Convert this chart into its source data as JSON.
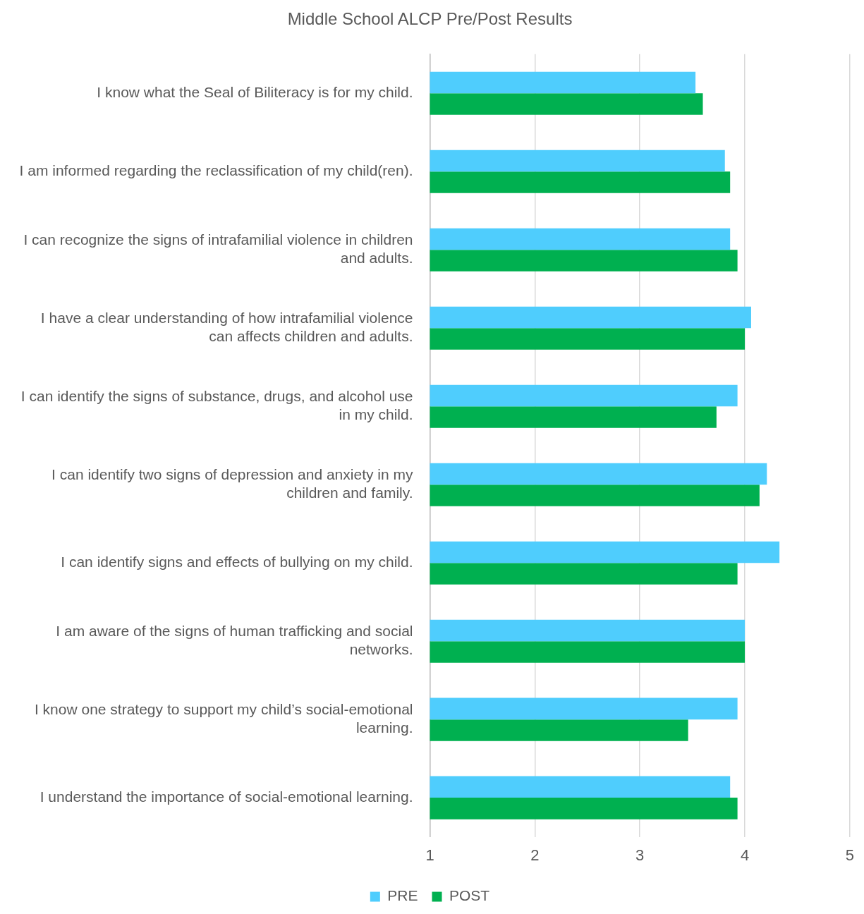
{
  "chart_data": {
    "type": "bar",
    "orientation": "horizontal",
    "title": "Middle School ALCP Pre/Post Results",
    "categories": [
      "I know what the Seal of Biliteracy is for my child.",
      "I am informed regarding the reclassification of my child(ren).",
      "I can recognize the signs of intrafamilial violence in children and adults.",
      "I have a clear understanding of how intrafamilial violence can affects children and adults.",
      "I can identify the signs of substance, drugs, and alcohol use in my child.",
      "I can identify two signs of depression and anxiety in my children and family.",
      "I can identify signs and effects of bullying on my child.",
      "I am aware of the signs of human trafficking and social networks.",
      "I know one strategy to support my child’s social-emotional learning.",
      "I understand the importance of social-emotional learning."
    ],
    "series": [
      {
        "name": "PRE",
        "color": "#4fcdfd",
        "values": [
          3.53,
          3.81,
          3.86,
          4.06,
          3.93,
          4.21,
          4.33,
          4.0,
          3.93,
          3.86
        ]
      },
      {
        "name": "POST",
        "color": "#00b050",
        "values": [
          3.6,
          3.86,
          3.93,
          4.0,
          3.73,
          4.14,
          3.93,
          4.0,
          3.46,
          3.93
        ]
      }
    ],
    "xlim": [
      1,
      5
    ],
    "xticks": [
      1,
      2,
      3,
      4,
      5
    ],
    "grid": "x",
    "legend": "bottom"
  }
}
